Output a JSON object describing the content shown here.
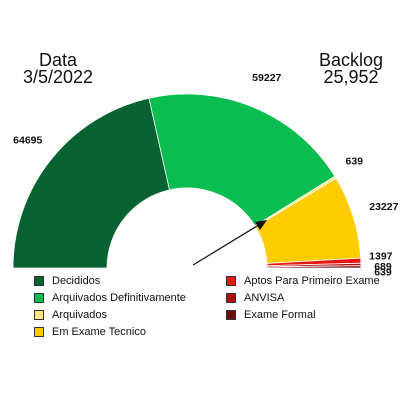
{
  "header": {
    "date_title": "Data",
    "date_value": "3/5/2022",
    "backlog_title": "Backlog",
    "backlog_value": "25,952"
  },
  "chart_data": {
    "type": "pie",
    "subtype": "semicircle-donut",
    "categories": [
      "Decididos",
      "Arquivados Definitivamente",
      "Arquivados",
      "Em Exame Tecnico",
      "Aptos Para Primeiro Exame",
      "ANVISA",
      "Exame Formal"
    ],
    "values": [
      64695,
      59227,
      639,
      23227,
      1397,
      689,
      639
    ],
    "data_labels": [
      "64695",
      "59227",
      "639",
      "23227",
      "1397",
      "689",
      "639"
    ],
    "colors": [
      "#066230",
      "#0ABD50",
      "#FFE680",
      "#FFCC00",
      "#E8150D",
      "#B00E0E",
      "#6E0A0A"
    ],
    "legend_placement": "bottom",
    "grid": false,
    "needle": true
  }
}
